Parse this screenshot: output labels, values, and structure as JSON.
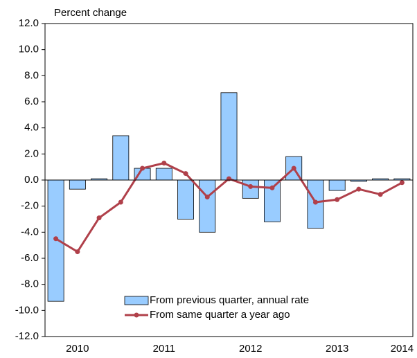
{
  "chart_data": {
    "type": "bar-line",
    "ylabel": "Percent change",
    "categories": [
      null,
      "2010",
      null,
      null,
      null,
      "2011",
      null,
      null,
      null,
      "2012",
      null,
      null,
      null,
      "2013",
      null,
      null,
      "2014"
    ],
    "series": [
      {
        "name": "From previous quarter, annual rate",
        "type": "bar",
        "color": "#99ccff",
        "values": [
          -9.3,
          -0.7,
          0.1,
          3.4,
          0.9,
          0.9,
          -3.0,
          -4.0,
          6.7,
          -1.4,
          -3.2,
          1.8,
          -3.7,
          -0.8,
          -0.1,
          0.1,
          0.1
        ]
      },
      {
        "name": "From same quarter a year ago",
        "type": "line",
        "color": "#b0404a",
        "values": [
          -4.5,
          -5.5,
          -2.9,
          -1.7,
          0.9,
          1.3,
          0.5,
          -1.3,
          0.1,
          -0.5,
          -0.6,
          0.9,
          -1.7,
          -1.5,
          -0.7,
          -1.1,
          -0.2
        ]
      }
    ],
    "ylim": [
      -12,
      12
    ],
    "yticks": [
      {
        "value": -12,
        "label": "-12.0"
      },
      {
        "value": -10,
        "label": "-10.0"
      },
      {
        "value": -8,
        "label": "-8.0"
      },
      {
        "value": -6,
        "label": "-6.0"
      },
      {
        "value": -4,
        "label": "-4.0"
      },
      {
        "value": -2,
        "label": "-2.0"
      },
      {
        "value": 0,
        "label": "0.0"
      },
      {
        "value": 2,
        "label": "2.0"
      },
      {
        "value": 4,
        "label": "4.0"
      },
      {
        "value": 6,
        "label": "6.0"
      },
      {
        "value": 8,
        "label": "8.0"
      },
      {
        "value": 10,
        "label": "10.0"
      },
      {
        "value": 12,
        "label": "12.0"
      }
    ],
    "grid": false
  }
}
